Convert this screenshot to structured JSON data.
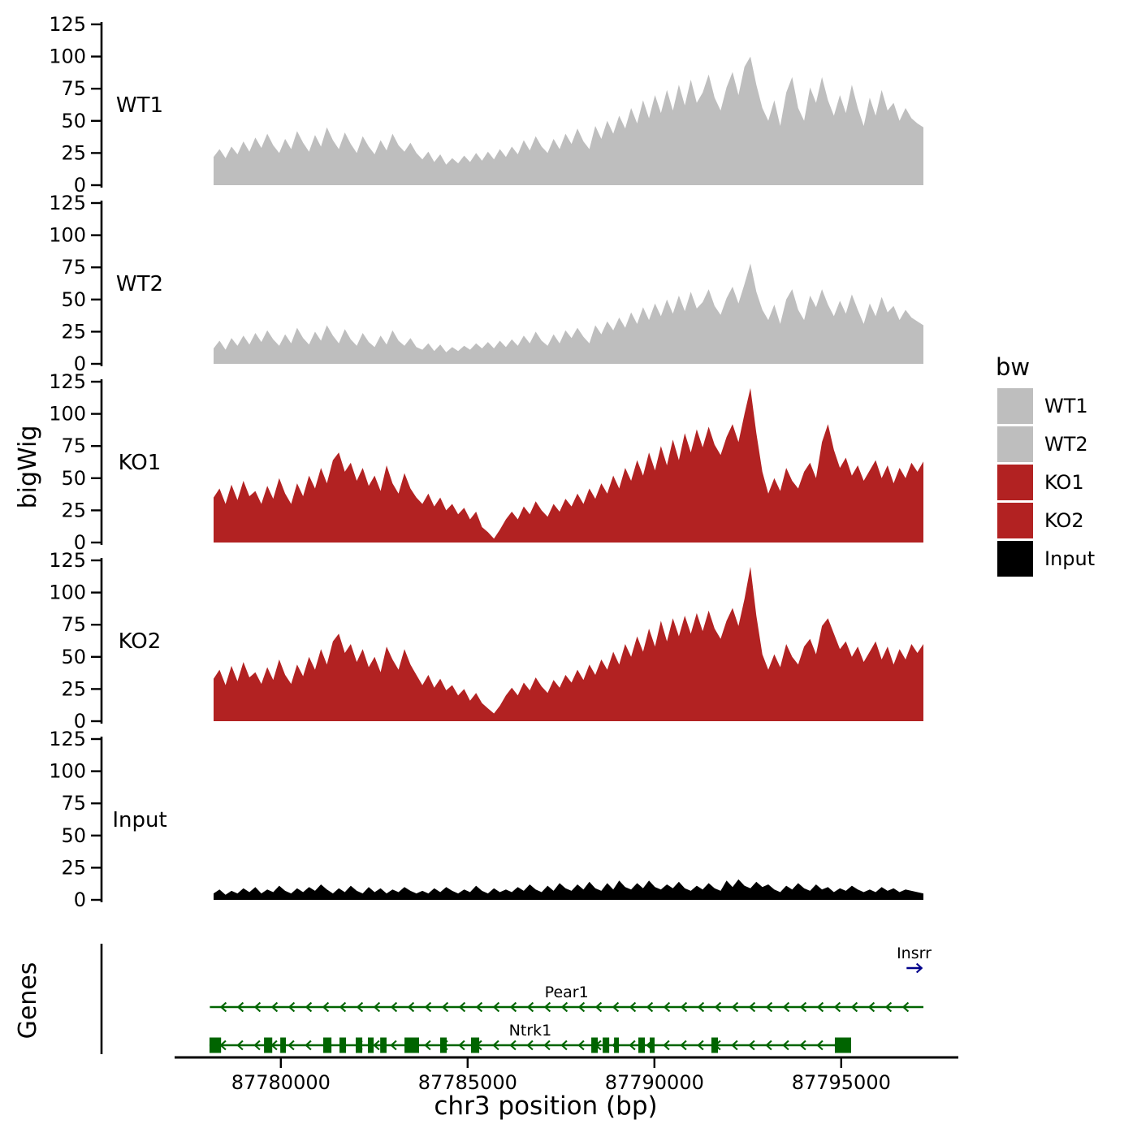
{
  "figure": {
    "y_axis_title": "bigWig",
    "genes_title": "Genes",
    "x_axis_title": "chr3 position (bp)",
    "background": "#ffffff",
    "axis_color": "#000000"
  },
  "legend": {
    "title": "bw",
    "items": [
      {
        "label": "WT1",
        "color": "#bebebe"
      },
      {
        "label": "WT2",
        "color": "#bebebe"
      },
      {
        "label": "KO1",
        "color": "#b22222"
      },
      {
        "label": "KO2",
        "color": "#b22222"
      },
      {
        "label": "Input",
        "color": "#000000"
      }
    ]
  },
  "chart_data": {
    "type": "area",
    "title": "",
    "xlabel": "chr3 position (bp)",
    "ylabel": "bigWig",
    "legend_title": "bw",
    "x_range": [
      87775200,
      87798135
    ],
    "x_data_start": 87778200,
    "x_data_end": 87797200,
    "x_ticks": [
      87780000,
      87785000,
      87790000,
      87795000
    ],
    "y_ticks": [
      0,
      25,
      50,
      75,
      100,
      125
    ],
    "ylim": [
      0,
      125
    ],
    "grid": false,
    "legend_position": "right",
    "series": [
      {
        "name": "WT1",
        "color": "#bebebe",
        "values": [
          22,
          28,
          21,
          30,
          24,
          34,
          26,
          37,
          29,
          40,
          31,
          25,
          36,
          28,
          42,
          33,
          26,
          39,
          30,
          45,
          35,
          28,
          41,
          32,
          25,
          38,
          30,
          24,
          35,
          27,
          40,
          31,
          26,
          33,
          25,
          20,
          26,
          18,
          24,
          16,
          21,
          17,
          23,
          18,
          25,
          19,
          26,
          20,
          28,
          22,
          30,
          24,
          35,
          27,
          38,
          30,
          25,
          36,
          28,
          40,
          32,
          44,
          34,
          28,
          46,
          36,
          50,
          40,
          54,
          44,
          60,
          48,
          66,
          52,
          70,
          56,
          74,
          58,
          78,
          62,
          82,
          64,
          72,
          86,
          68,
          58,
          76,
          88,
          70,
          92,
          100,
          78,
          60,
          50,
          66,
          46,
          72,
          84,
          60,
          50,
          76,
          64,
          84,
          66,
          54,
          70,
          56,
          78,
          60,
          46,
          68,
          54,
          74,
          58,
          64,
          50,
          60,
          52,
          48,
          45
        ]
      },
      {
        "name": "WT2",
        "color": "#bebebe",
        "values": [
          12,
          18,
          11,
          20,
          14,
          22,
          15,
          24,
          17,
          26,
          19,
          14,
          23,
          16,
          28,
          20,
          15,
          25,
          18,
          30,
          22,
          16,
          27,
          19,
          14,
          24,
          17,
          13,
          22,
          15,
          26,
          18,
          14,
          20,
          13,
          11,
          16,
          10,
          15,
          9,
          13,
          10,
          14,
          11,
          16,
          12,
          17,
          12,
          18,
          13,
          19,
          14,
          22,
          16,
          25,
          18,
          14,
          23,
          16,
          26,
          20,
          28,
          21,
          16,
          30,
          23,
          33,
          26,
          36,
          28,
          40,
          31,
          44,
          34,
          47,
          37,
          50,
          39,
          53,
          41,
          56,
          43,
          48,
          58,
          45,
          38,
          51,
          60,
          47,
          62,
          78,
          56,
          42,
          34,
          46,
          31,
          50,
          58,
          42,
          34,
          53,
          44,
          58,
          46,
          37,
          49,
          39,
          54,
          42,
          31,
          47,
          37,
          52,
          40,
          45,
          34,
          42,
          36,
          33,
          30
        ]
      },
      {
        "name": "KO1",
        "color": "#b22222",
        "values": [
          35,
          42,
          30,
          45,
          33,
          48,
          36,
          40,
          30,
          44,
          34,
          50,
          38,
          30,
          46,
          36,
          52,
          42,
          58,
          46,
          64,
          70,
          55,
          62,
          48,
          58,
          44,
          52,
          40,
          60,
          46,
          38,
          54,
          42,
          35,
          30,
          38,
          28,
          35,
          25,
          30,
          22,
          27,
          18,
          24,
          12,
          8,
          3,
          10,
          18,
          24,
          18,
          28,
          22,
          32,
          25,
          20,
          30,
          24,
          34,
          28,
          38,
          30,
          42,
          34,
          46,
          38,
          52,
          42,
          58,
          48,
          64,
          52,
          70,
          56,
          75,
          60,
          80,
          64,
          85,
          70,
          88,
          74,
          90,
          76,
          68,
          82,
          92,
          78,
          100,
          120,
          85,
          55,
          38,
          50,
          40,
          58,
          48,
          42,
          55,
          62,
          50,
          78,
          92,
          72,
          58,
          66,
          52,
          60,
          48,
          56,
          64,
          50,
          60,
          46,
          58,
          50,
          62,
          55,
          63
        ]
      },
      {
        "name": "KO2",
        "color": "#b22222",
        "values": [
          33,
          40,
          28,
          43,
          31,
          46,
          34,
          38,
          29,
          42,
          32,
          48,
          36,
          29,
          44,
          35,
          50,
          40,
          56,
          44,
          62,
          68,
          53,
          60,
          46,
          56,
          42,
          50,
          38,
          58,
          48,
          40,
          56,
          44,
          36,
          28,
          36,
          26,
          33,
          24,
          28,
          20,
          25,
          16,
          22,
          14,
          10,
          6,
          12,
          20,
          26,
          20,
          30,
          24,
          34,
          27,
          22,
          32,
          26,
          36,
          30,
          40,
          32,
          44,
          36,
          48,
          40,
          54,
          44,
          60,
          50,
          66,
          54,
          72,
          58,
          78,
          62,
          80,
          66,
          82,
          68,
          84,
          70,
          86,
          72,
          64,
          78,
          88,
          74,
          95,
          120,
          82,
          52,
          40,
          52,
          42,
          60,
          50,
          44,
          58,
          64,
          52,
          74,
          80,
          68,
          56,
          62,
          50,
          58,
          46,
          54,
          62,
          48,
          58,
          44,
          56,
          48,
          60,
          53,
          60
        ]
      },
      {
        "name": "Input",
        "color": "#000000",
        "values": [
          5,
          8,
          4,
          7,
          5,
          9,
          6,
          10,
          5,
          8,
          6,
          11,
          7,
          5,
          9,
          6,
          10,
          7,
          12,
          8,
          5,
          9,
          6,
          11,
          7,
          5,
          10,
          6,
          9,
          5,
          8,
          6,
          10,
          7,
          5,
          7,
          5,
          9,
          6,
          10,
          7,
          5,
          8,
          6,
          11,
          7,
          5,
          9,
          6,
          8,
          6,
          10,
          7,
          12,
          8,
          6,
          11,
          7,
          13,
          9,
          7,
          12,
          8,
          14,
          9,
          7,
          13,
          8,
          15,
          10,
          8,
          13,
          9,
          15,
          10,
          8,
          12,
          9,
          14,
          9,
          7,
          11,
          8,
          13,
          9,
          7,
          15,
          10,
          16,
          11,
          9,
          14,
          10,
          12,
          8,
          6,
          11,
          8,
          13,
          9,
          7,
          12,
          8,
          10,
          6,
          9,
          7,
          11,
          8,
          6,
          8,
          6,
          10,
          7,
          9,
          6,
          8,
          7,
          6,
          5
        ]
      }
    ],
    "genes": {
      "track_label": "Genes",
      "items": [
        {
          "name": "Insrr",
          "strand": "+",
          "color": "#00008b",
          "start": 87796750,
          "end": 87797150,
          "row": 0,
          "exons": []
        },
        {
          "name": "Pear1",
          "strand": "-",
          "color": "#006400",
          "start": 87778100,
          "end": 87797200,
          "row": 1,
          "exons": []
        },
        {
          "name": "Ntrk1",
          "strand": "-",
          "color": "#006400",
          "start": 87778090,
          "end": 87795265,
          "row": 2,
          "exons": [
            [
              87778090,
              87778400
            ],
            [
              87779550,
              87779770
            ],
            [
              87779985,
              87780135
            ],
            [
              87781135,
              87781355
            ],
            [
              87781570,
              87781745
            ],
            [
              87782005,
              87782180
            ],
            [
              87782330,
              87782485
            ],
            [
              87782660,
              87782830
            ],
            [
              87783310,
              87783700
            ],
            [
              87784265,
              87784440
            ],
            [
              87785090,
              87785310
            ],
            [
              87788310,
              87788485
            ],
            [
              87788615,
              87788790
            ],
            [
              87788920,
              87789050
            ],
            [
              87789570,
              87789745
            ],
            [
              87789875,
              87790005
            ],
            [
              87791525,
              87791700
            ],
            [
              87794830,
              87795265
            ]
          ]
        }
      ]
    }
  }
}
